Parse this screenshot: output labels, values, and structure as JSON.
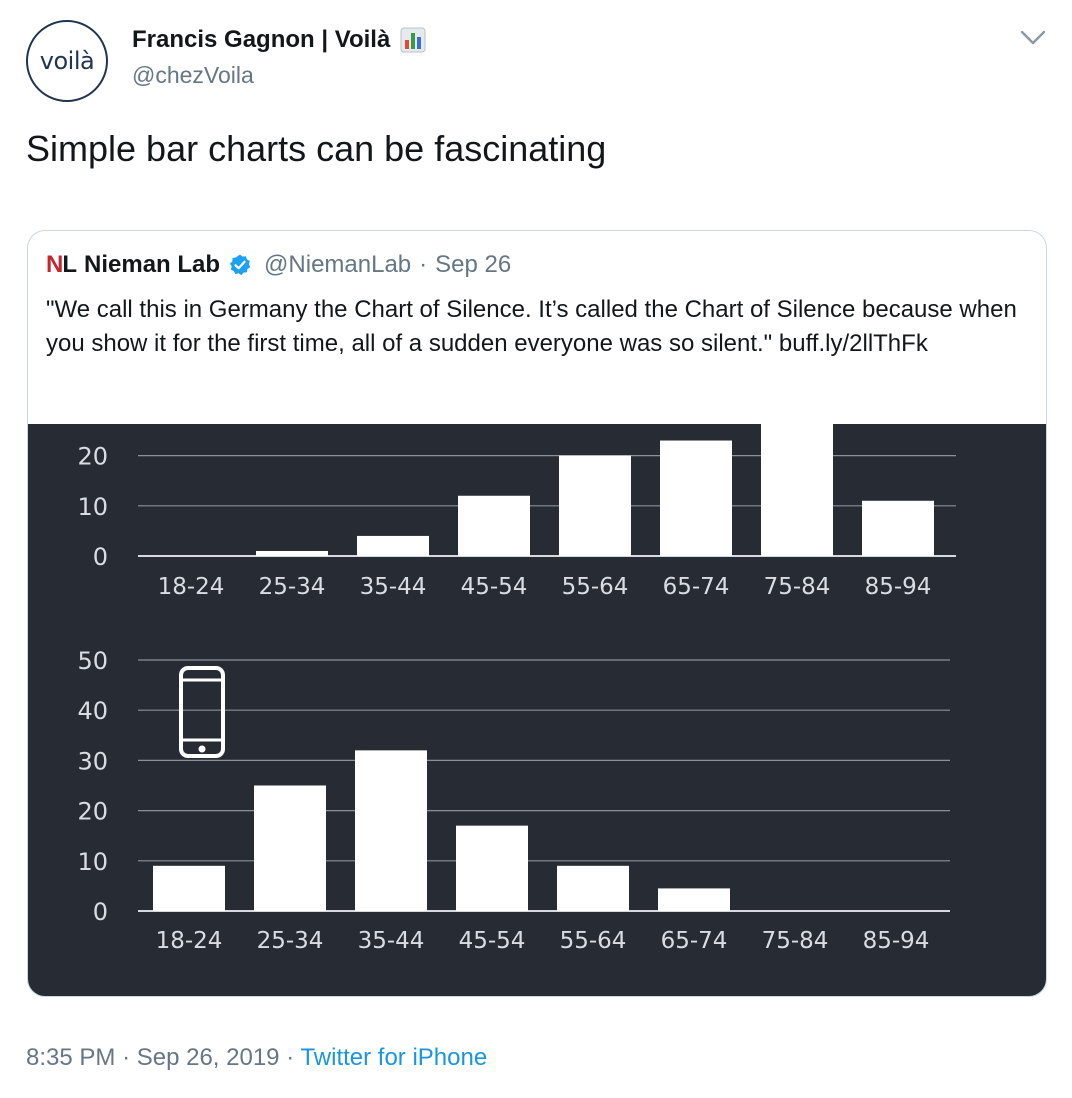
{
  "tweet": {
    "author_name": "Francis Gagnon | Voilà",
    "author_handle": "@chezVoila",
    "avatar_text": "voilà",
    "text": "Simple bar charts can be fascinating",
    "time": "8:35 PM",
    "separator": "·",
    "date": "Sep 26, 2019",
    "source": "Twitter for iPhone"
  },
  "quote": {
    "logo_n": "N",
    "logo_l": "L",
    "name": "Nieman Lab",
    "handle": "@NiemanLab",
    "separator": "·",
    "date": "Sep 26",
    "text": "\"We call this in Germany the Chart of Silence. It’s called the Chart of Silence because when you show it for the first time, all of a sudden everyone was so silent.\" buff.ly/2llThFk"
  },
  "colors": {
    "chart_background": "#272c34",
    "bar": "#ffffff",
    "link": "#1b95e0",
    "verified": "#1da1f2",
    "logo_red": "#c4262e"
  },
  "icons": [
    "chevron-down-icon",
    "bar-chart-emoji-icon",
    "verified-badge-icon",
    "smartphone-icon"
  ],
  "chart_data": [
    {
      "type": "bar",
      "categories": [
        "18-24",
        "25-34",
        "35-44",
        "45-54",
        "55-64",
        "65-74",
        "75-84",
        "85-94"
      ],
      "values": [
        0,
        1,
        4,
        12,
        20,
        23,
        27,
        11
      ],
      "yticks": [
        0,
        10,
        20
      ],
      "ylim": [
        0,
        27
      ],
      "grid": true
    },
    {
      "type": "bar",
      "categories": [
        "18-24",
        "25-34",
        "35-44",
        "45-54",
        "55-64",
        "65-74",
        "75-84",
        "85-94"
      ],
      "values": [
        9,
        25,
        32,
        17,
        9,
        4.5,
        0,
        0
      ],
      "yticks": [
        0,
        10,
        20,
        30,
        40,
        50
      ],
      "ylim": [
        0,
        50
      ],
      "grid": true,
      "icon": "smartphone-icon"
    }
  ]
}
